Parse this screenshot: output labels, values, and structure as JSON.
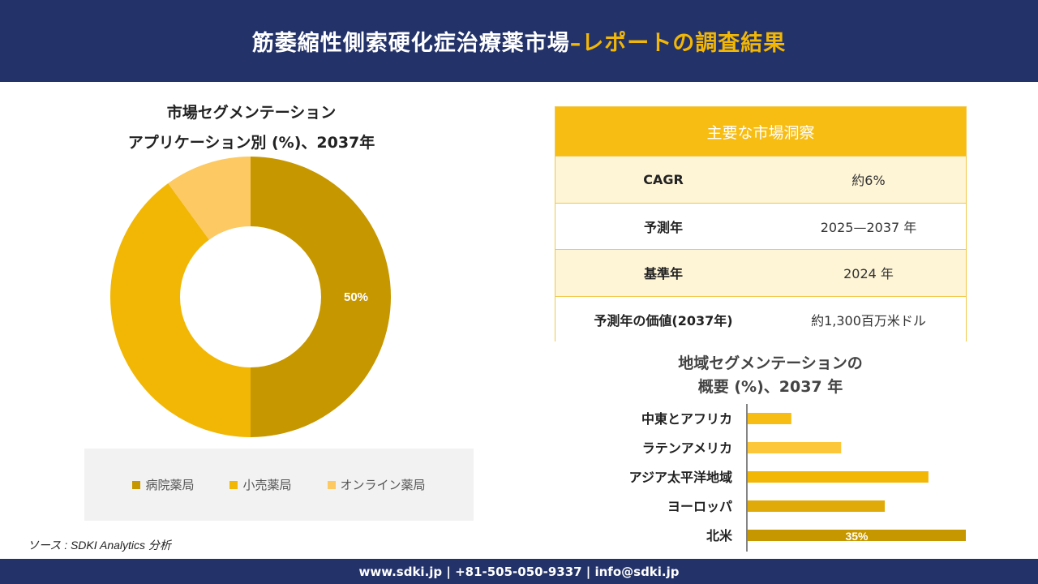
{
  "header": {
    "title": "筋萎縮性側索硬化症治療薬市場",
    "accent": "–レポートの調査結果"
  },
  "colors": {
    "navy": "#233269",
    "gold": "#f2b705",
    "dark_gold": "#c79700",
    "light_gold": "#fcc962"
  },
  "donut": {
    "title_line1": "市場セグメンテーション",
    "title_line2": "アプリケーション別 (%)、2037年"
  },
  "insights": {
    "header": "主要な市場洞察",
    "rows": [
      {
        "label": "CAGR",
        "value": "約6%"
      },
      {
        "label": "予測年",
        "value": "2025—2037 年"
      },
      {
        "label": "基準年",
        "value": "2024 年"
      },
      {
        "label": "予測年の価値(2037年)",
        "value": "約1,300百万米ドル"
      }
    ]
  },
  "bars": {
    "title_line1": "地域セグメンテーションの",
    "title_line2": "概要 (%)、2037 年"
  },
  "chart_data": [
    {
      "type": "pie",
      "title": "市場セグメンテーション アプリケーション別 (%)、2037年",
      "categories": [
        "病院薬局",
        "小売薬局",
        "オンライン薬局"
      ],
      "values": [
        50,
        40,
        10
      ],
      "colors": [
        "#c79700",
        "#f2b705",
        "#fcc962"
      ],
      "labels": [
        "50%",
        "",
        ""
      ],
      "legend": "bottom"
    },
    {
      "type": "bar",
      "orientation": "horizontal",
      "title": "地域セグメンテーションの 概要 (%)、2037 年",
      "categories": [
        "中東とアフリカ",
        "ラテンアメリカ",
        "アジア太平洋地域",
        "ヨーロッパ",
        "北米"
      ],
      "values": [
        7,
        15,
        29,
        22,
        35
      ],
      "colors": [
        "#f7bd12",
        "#fcc83a",
        "#f2b705",
        "#e0aa08",
        "#c79700"
      ],
      "labels": [
        "",
        "",
        "",
        "",
        "35%"
      ],
      "xlim": [
        0,
        35
      ]
    }
  ],
  "footer": {
    "text": "www.sdki.jp | +81-505-050-9337 | info@sdki.jp"
  },
  "source": "ソース : SDKI Analytics 分析"
}
